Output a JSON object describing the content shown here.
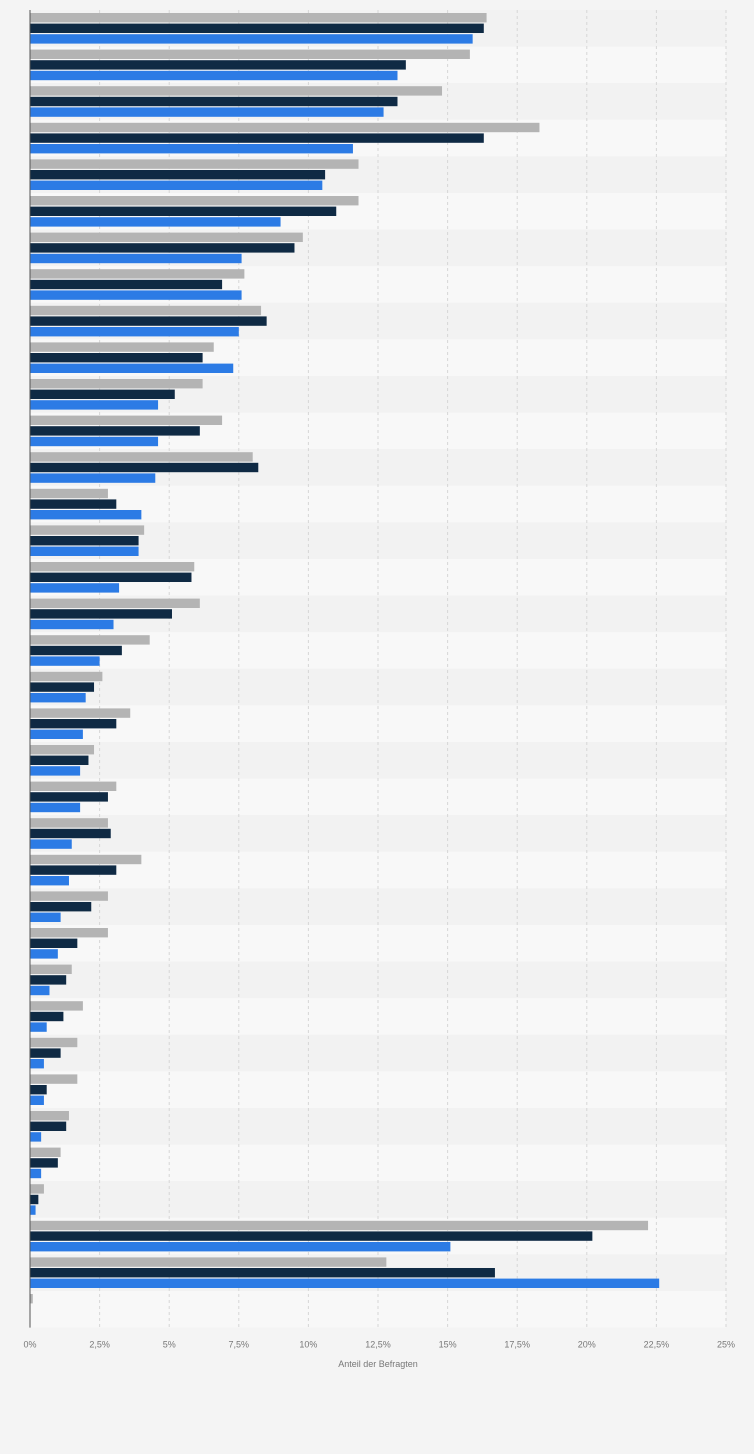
{
  "chart_data": {
    "type": "bar",
    "orientation": "horizontal",
    "categories": [
      "",
      "",
      "",
      "",
      "",
      "",
      "",
      "",
      "",
      "",
      "",
      "",
      "",
      "",
      "",
      "",
      "",
      "",
      "",
      "",
      "",
      "",
      "",
      "",
      "",
      "",
      "",
      "",
      "",
      "",
      "",
      "",
      "",
      "",
      "",
      ""
    ],
    "series": [
      {
        "color": "#b4b4b4",
        "values": [
          16.4,
          15.8,
          14.8,
          18.3,
          11.8,
          11.8,
          9.8,
          7.7,
          8.3,
          6.6,
          6.2,
          6.9,
          8.0,
          2.8,
          4.1,
          5.9,
          6.1,
          4.3,
          2.6,
          3.6,
          2.3,
          3.1,
          2.8,
          4.0,
          2.8,
          2.8,
          1.5,
          1.9,
          1.7,
          1.7,
          1.4,
          1.1,
          0.5,
          22.2,
          12.8,
          0.1
        ]
      },
      {
        "color": "#0f2a44",
        "values": [
          16.3,
          13.5,
          13.2,
          16.3,
          10.6,
          11.0,
          9.5,
          6.9,
          8.5,
          6.2,
          5.2,
          6.1,
          8.2,
          3.1,
          3.9,
          5.8,
          5.1,
          3.3,
          2.3,
          3.1,
          2.1,
          2.8,
          2.9,
          3.1,
          2.2,
          1.7,
          1.3,
          1.2,
          1.1,
          0.6,
          1.3,
          1.0,
          0.3,
          20.2,
          16.7,
          0
        ]
      },
      {
        "color": "#2c7be5",
        "values": [
          15.9,
          13.2,
          12.7,
          11.6,
          10.5,
          9.0,
          7.6,
          7.6,
          7.5,
          7.3,
          4.6,
          4.6,
          4.5,
          4.0,
          3.9,
          3.2,
          3.0,
          2.5,
          2.0,
          1.9,
          1.8,
          1.8,
          1.5,
          1.4,
          1.1,
          1.0,
          0.7,
          0.6,
          0.5,
          0.5,
          0.4,
          0.4,
          0.2,
          15.1,
          22.6,
          0
        ]
      }
    ],
    "xlim": [
      0,
      25
    ],
    "xticks": [
      "0%",
      "2,5%",
      "5%",
      "7,5%",
      "10%",
      "12,5%",
      "15%",
      "17,5%",
      "20%",
      "22,5%",
      "25%"
    ],
    "xlabel": "Anteil der Befragten",
    "grid": "vertical dashed",
    "legend": "none"
  },
  "colors": {
    "band_light": "#f8f8f8",
    "band_dark": "#f2f2f2",
    "grid": "#d6d6d6",
    "axis": "#555555",
    "tick_text": "#777777"
  }
}
